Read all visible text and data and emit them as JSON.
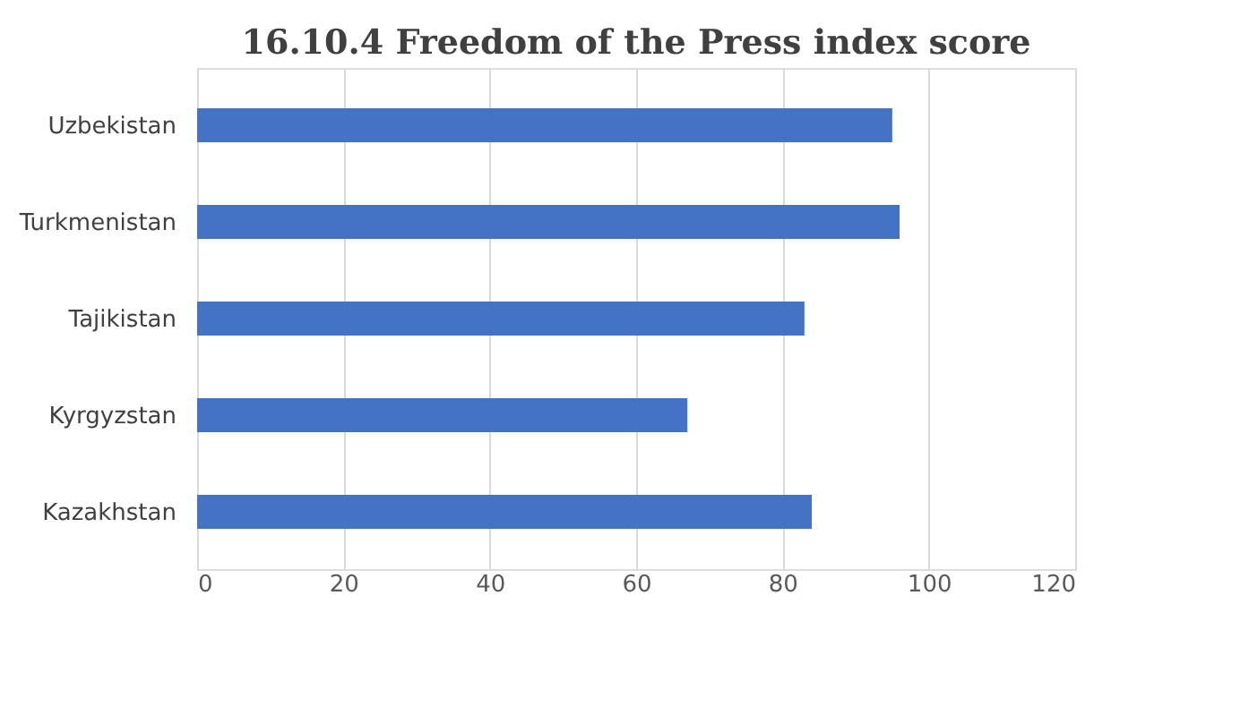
{
  "chart_data": {
    "type": "bar",
    "orientation": "horizontal",
    "title": "16.10.4 Freedom of the Press index score",
    "categories": [
      "Uzbekistan",
      "Turkmenistan",
      "Tajikistan",
      "Kyrgyzstan",
      "Kazakhstan"
    ],
    "values": [
      95,
      96,
      83,
      67,
      84
    ],
    "color": "#4472c4",
    "xlim": [
      0,
      120
    ],
    "xticks": [
      0,
      20,
      40,
      60,
      80,
      100,
      120
    ],
    "grid": "x"
  }
}
